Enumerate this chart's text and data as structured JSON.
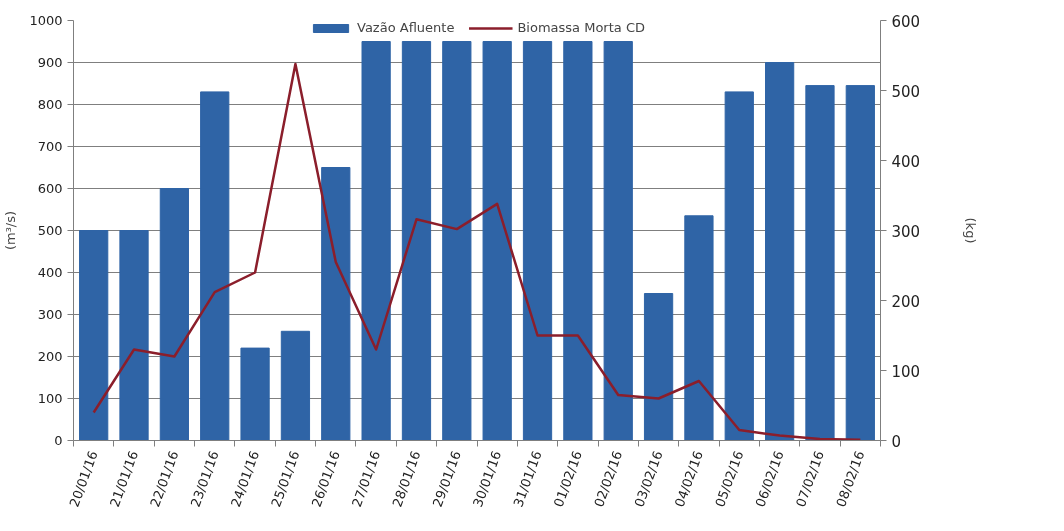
{
  "chart_data": {
    "type": "bar",
    "categories": [
      "20/01/16",
      "21/01/16",
      "22/01/16",
      "23/01/16",
      "24/01/16",
      "25/01/16",
      "26/01/16",
      "27/01/16",
      "28/01/16",
      "29/01/16",
      "30/01/16",
      "31/01/16",
      "01/02/16",
      "02/02/16",
      "03/02/16",
      "04/02/16",
      "05/02/16",
      "06/02/16",
      "07/02/16",
      "08/02/16"
    ],
    "series": [
      {
        "name": "Vazão Afluente",
        "color": "#2f64a6",
        "values": [
          500,
          500,
          600,
          830,
          220,
          260,
          650,
          950,
          950,
          950,
          950,
          950,
          950,
          950,
          350,
          535,
          830,
          900,
          845,
          845
        ]
      },
      {
        "name": "Biomassa Morta CD",
        "type": "line",
        "axis": "y2",
        "color": "#8b1e2b",
        "values": [
          40,
          130,
          120,
          212,
          240,
          538,
          255,
          130,
          316,
          302,
          338,
          150,
          150,
          65,
          60,
          85,
          15,
          7,
          2,
          1
        ]
      }
    ],
    "ylabel": "(m³/s)",
    "y2label": "(kg)",
    "ylim": [
      0,
      1000
    ],
    "yticks": [
      0,
      100,
      200,
      300,
      400,
      500,
      600,
      700,
      800,
      900,
      1000
    ],
    "y2lim": [
      0,
      600
    ],
    "y2ticks": [
      0,
      100,
      200,
      300,
      400,
      500,
      600
    ],
    "grid": "y",
    "legend": "top"
  }
}
